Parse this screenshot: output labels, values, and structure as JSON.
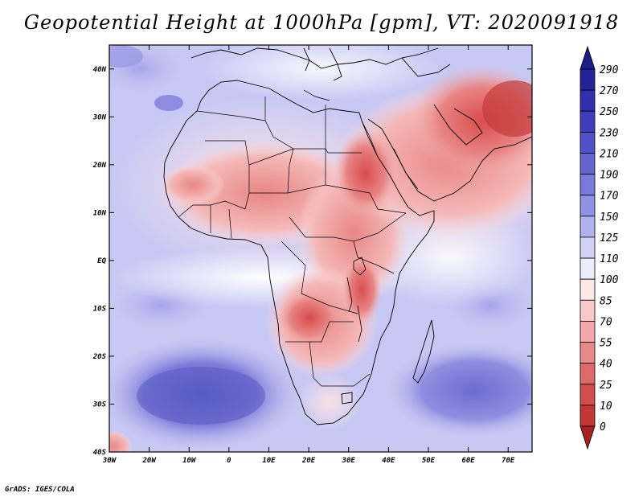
{
  "title": "Geopotential Height at 1000hPa [gpm], VT: 2020091918",
  "credit": "GrADS: IGES/COLA",
  "map": {
    "region": "Africa and Middle East",
    "variable": "Geopotential Height at 1000hPa",
    "units": "gpm",
    "valid_time": "2020091918",
    "lon_range": [
      -30,
      76
    ],
    "lat_range": [
      -40,
      45
    ],
    "lat_ticks": [
      {
        "value": 40,
        "label": "40N"
      },
      {
        "value": 30,
        "label": "30N"
      },
      {
        "value": 20,
        "label": "20N"
      },
      {
        "value": 10,
        "label": "10N"
      },
      {
        "value": 0,
        "label": "EQ"
      },
      {
        "value": -10,
        "label": "10S"
      },
      {
        "value": -20,
        "label": "20S"
      },
      {
        "value": -30,
        "label": "30S"
      },
      {
        "value": -40,
        "label": "40S"
      }
    ],
    "lon_ticks": [
      {
        "value": -30,
        "label": "30W"
      },
      {
        "value": -20,
        "label": "20W"
      },
      {
        "value": -10,
        "label": "10W"
      },
      {
        "value": 0,
        "label": "0"
      },
      {
        "value": 10,
        "label": "10E"
      },
      {
        "value": 20,
        "label": "20E"
      },
      {
        "value": 30,
        "label": "30E"
      },
      {
        "value": 40,
        "label": "40E"
      },
      {
        "value": 50,
        "label": "50E"
      },
      {
        "value": 60,
        "label": "60E"
      },
      {
        "value": 70,
        "label": "70E"
      }
    ]
  },
  "colorbar": {
    "levels": [
      "290",
      "270",
      "250",
      "230",
      "210",
      "190",
      "170",
      "150",
      "125",
      "110",
      "100",
      "85",
      "70",
      "55",
      "40",
      "25",
      "10",
      "0"
    ],
    "colors": [
      "#23239a",
      "#3030ae",
      "#3f3fbe",
      "#5050c8",
      "#6565d2",
      "#7a7adc",
      "#9191e4",
      "#b1b1ee",
      "#d2d2f6",
      "#ececfb",
      "#fde8e8",
      "#f9c9c9",
      "#f2a8a8",
      "#e98a8a",
      "#de6a6a",
      "#d24e4e",
      "#c23636",
      "#b22222"
    ],
    "top_color": "#1c1c85",
    "bottom_color": "#a52323"
  }
}
